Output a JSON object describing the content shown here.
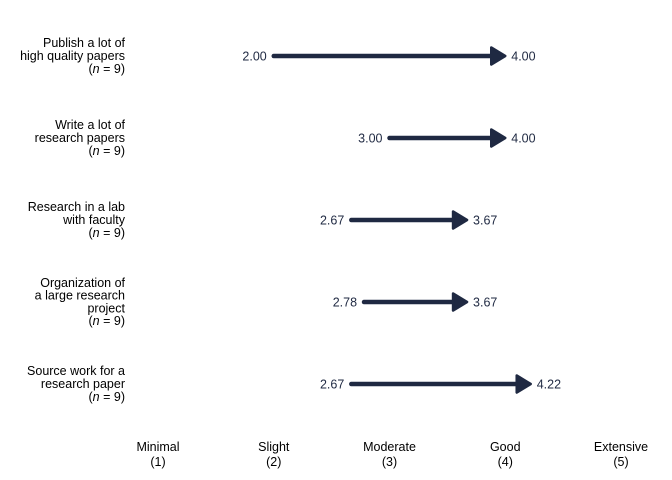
{
  "chart_data": {
    "type": "arrow",
    "xlim": [
      1,
      5
    ],
    "grid": false,
    "arrow_color": "#1f2942",
    "x_ticks": [
      {
        "value": 1,
        "label": "Minimal",
        "sub": "(1)"
      },
      {
        "value": 2,
        "label": "Slight",
        "sub": "(2)"
      },
      {
        "value": 3,
        "label": "Moderate",
        "sub": "(3)"
      },
      {
        "value": 4,
        "label": "Good",
        "sub": "(4)"
      },
      {
        "value": 5,
        "label": "Extensive",
        "sub": "(5)"
      }
    ],
    "rows": [
      {
        "label": [
          "Publish a lot of",
          "high quality papers"
        ],
        "n": "9",
        "start": 2.0,
        "end": 4.0,
        "start_label": "2.00",
        "end_label": "4.00"
      },
      {
        "label": [
          "Write a lot of",
          "research papers"
        ],
        "n": "9",
        "start": 3.0,
        "end": 4.0,
        "start_label": "3.00",
        "end_label": "4.00"
      },
      {
        "label": [
          "Research in a lab",
          "with faculty"
        ],
        "n": "9",
        "start": 2.67,
        "end": 3.67,
        "start_label": "2.67",
        "end_label": "3.67"
      },
      {
        "label": [
          "Organization of",
          "a large research",
          "project"
        ],
        "n": "9",
        "start": 2.78,
        "end": 3.67,
        "start_label": "2.78",
        "end_label": "3.67"
      },
      {
        "label": [
          "Source work for a",
          "research paper"
        ],
        "n": "9",
        "start": 2.67,
        "end": 4.22,
        "start_label": "2.67",
        "end_label": "4.22"
      }
    ]
  }
}
